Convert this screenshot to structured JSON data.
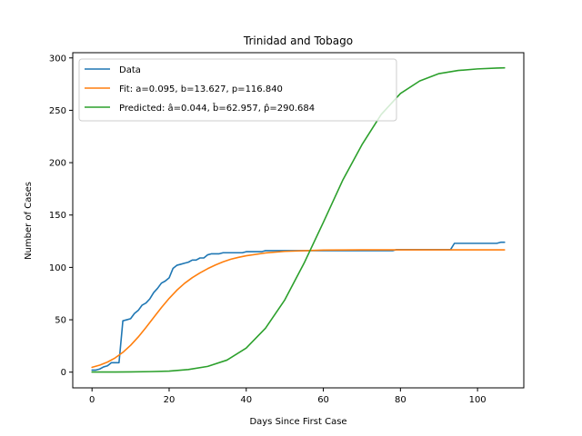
{
  "chart_data": {
    "type": "line",
    "title": "Trinidad and Tobago",
    "xlabel": "Days Since First Case",
    "ylabel": "Number of Cases",
    "xlim": [
      -5,
      112
    ],
    "ylim": [
      -15,
      305
    ],
    "xticks": [
      0,
      20,
      40,
      60,
      80,
      100
    ],
    "yticks": [
      0,
      50,
      100,
      150,
      200,
      250,
      300
    ],
    "grid": false,
    "legend_position": "top-left",
    "series": [
      {
        "name": "Data",
        "color": "#1f77b4",
        "x": [
          0,
          1,
          2,
          3,
          4,
          5,
          6,
          7,
          8,
          9,
          10,
          11,
          12,
          13,
          14,
          15,
          16,
          17,
          18,
          19,
          20,
          21,
          22,
          23,
          24,
          25,
          26,
          27,
          28,
          29,
          30,
          31,
          32,
          33,
          34,
          35,
          36,
          37,
          38,
          39,
          40,
          41,
          42,
          43,
          44,
          45,
          50,
          55,
          60,
          65,
          70,
          75,
          78,
          79,
          80,
          85,
          90,
          93,
          94,
          95,
          100,
          105,
          106,
          107
        ],
        "y": [
          2,
          2,
          3,
          5,
          6,
          9,
          9,
          9,
          49,
          50,
          51,
          56,
          59,
          64,
          66,
          70,
          76,
          80,
          85,
          87,
          90,
          99,
          102,
          103,
          104,
          105,
          107,
          107,
          109,
          109,
          112,
          113,
          113,
          113,
          114,
          114,
          114,
          114,
          114,
          114,
          115,
          115,
          115,
          115,
          115,
          116,
          116,
          116,
          116,
          116,
          116,
          116,
          116,
          117,
          117,
          117,
          117,
          117,
          123,
          123,
          123,
          123,
          124,
          124
        ]
      },
      {
        "name": "Fit: a=0.095, b=13.627, p=116.840",
        "color": "#ff7f0e",
        "model": "logistic",
        "params": {
          "a": 0.095,
          "b": 13.627,
          "p": 116.84
        },
        "x": [
          0,
          2,
          4,
          6,
          8,
          10,
          12,
          14,
          16,
          18,
          20,
          22,
          24,
          26,
          28,
          30,
          32,
          34,
          36,
          38,
          40,
          45,
          50,
          60,
          70,
          80,
          90,
          100,
          107
        ],
        "y": [
          4.6,
          6.7,
          9.6,
          13.6,
          18.9,
          25.6,
          33.6,
          42.7,
          52.2,
          61.6,
          70.4,
          78.2,
          84.8,
          90.2,
          94.8,
          98.8,
          102.3,
          105.3,
          107.8,
          109.6,
          111.1,
          113.8,
          115.3,
          116.5,
          116.8,
          116.8,
          116.8,
          116.8,
          116.8
        ]
      },
      {
        "name": "Predicted: â=0.044, b̂=62.957, p̂=290.684",
        "color": "#2ca02c",
        "model": "logistic",
        "params": {
          "a": 0.044,
          "b": 62.957,
          "p": 290.684
        },
        "x": [
          0,
          5,
          10,
          15,
          20,
          25,
          30,
          35,
          40,
          45,
          50,
          55,
          60,
          65,
          70,
          75,
          80,
          85,
          90,
          95,
          100,
          105,
          107
        ],
        "y": [
          0.1,
          0.1,
          0.2,
          0.5,
          1,
          2.5,
          5.5,
          11.5,
          23,
          42,
          69,
          104,
          143,
          183,
          217,
          246,
          266,
          278,
          285,
          288,
          289.5,
          290.3,
          290.5
        ]
      }
    ]
  }
}
